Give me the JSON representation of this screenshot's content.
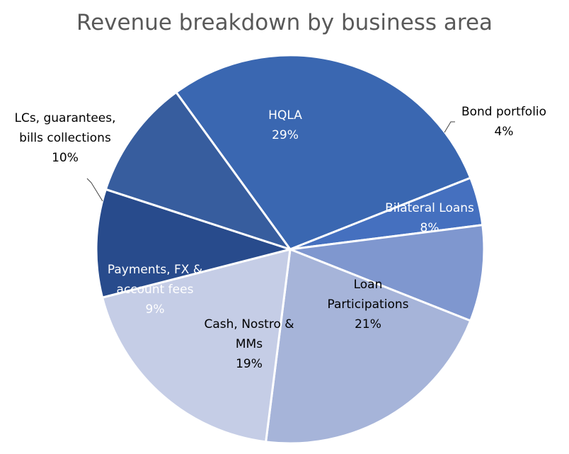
{
  "chart_data": {
    "type": "pie",
    "title": "Revenue breakdown by business area",
    "slices": [
      {
        "name": "HQLA",
        "value": 29,
        "label_lines": [
          "HQLA",
          "29%"
        ],
        "color": "#3a67b1",
        "text_color": "#ffffff"
      },
      {
        "name": "Bond portfolio",
        "value": 4,
        "label_lines": [
          "Bond portfolio",
          "4%"
        ],
        "color": "#4570bf",
        "text_color": "#000000"
      },
      {
        "name": "Bilateral Loans",
        "value": 8,
        "label_lines": [
          "Bilateral Loans",
          "8%"
        ],
        "color": "#7f97cf",
        "text_color": "#ffffff"
      },
      {
        "name": "Loan Participations",
        "value": 21,
        "label_lines": [
          "Loan",
          "Participations",
          "21%"
        ],
        "color": "#a6b4d9",
        "text_color": "#000000"
      },
      {
        "name": "Cash, Nostro & MMs",
        "value": 19,
        "label_lines": [
          "Cash, Nostro &",
          "MMs",
          "19%"
        ],
        "color": "#c5cde6",
        "text_color": "#000000"
      },
      {
        "name": "Payments, FX & account fees",
        "value": 9,
        "label_lines": [
          "Payments, FX &",
          "account fees",
          "9%"
        ],
        "color": "#284b8c",
        "text_color": "#ffffff"
      },
      {
        "name": "LCs, guarantees, bills collections",
        "value": 10,
        "label_lines": [
          "LCs, guarantees,",
          "bills collections",
          "10%"
        ],
        "color": "#375d9e",
        "text_color": "#000000"
      }
    ]
  }
}
